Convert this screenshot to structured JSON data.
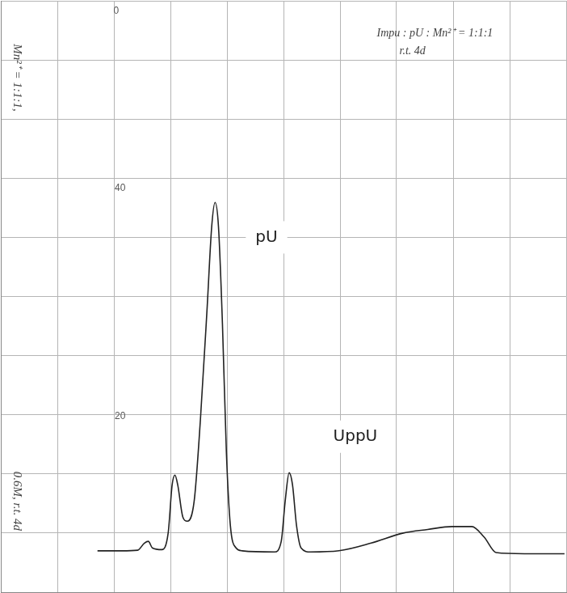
{
  "chart_data": {
    "type": "line",
    "x": [
      17.1,
      21.4,
      24.2,
      25.4,
      26.1,
      26.8,
      28.5,
      29.6,
      30.3,
      30.8,
      31.3,
      32.2,
      33.0,
      34.2,
      35.3,
      36.5,
      37.3,
      37.9,
      38.5,
      39.2,
      39.9,
      40.6,
      41.6,
      42.7,
      48.4,
      49.6,
      50.3,
      51.0,
      51.6,
      52.3,
      53.1,
      54.8,
      59.8,
      65.5,
      71.2,
      75.5,
      79.8,
      83.3,
      85.5,
      87.6,
      92.6,
      99.7
    ],
    "values": [
      7.0,
      7.0,
      7.1,
      8.3,
      8.6,
      7.5,
      7.2,
      10.0,
      18.1,
      19.8,
      18.1,
      12.7,
      12.0,
      15.4,
      29.1,
      48.2,
      61.8,
      65.9,
      61.8,
      45.4,
      23.6,
      11.3,
      7.5,
      7.0,
      6.8,
      8.6,
      15.4,
      20.2,
      18.1,
      11.3,
      7.5,
      6.8,
      7.0,
      8.3,
      10.0,
      10.6,
      11.1,
      11.1,
      9.3,
      6.7,
      6.5,
      6.5
    ],
    "color": "#222222",
    "xlim": [
      0,
      100
    ],
    "xticks": [
      0,
      10,
      20,
      30,
      40,
      50,
      60,
      70,
      80,
      90,
      100
    ],
    "ylim": [
      0,
      100
    ],
    "yticks": [
      0,
      10,
      20,
      30,
      40,
      50,
      60,
      70,
      80,
      90,
      100
    ],
    "grid": true,
    "tick_labels": false,
    "annotations": [
      {
        "text": "pU",
        "x": 47.0,
        "y": 60.0
      },
      {
        "text": "UppU",
        "x": 62.7,
        "y": 26.3
      },
      {
        "text": "Impu : pU : Mn²⁺ = 1:1:1",
        "x": 66.5,
        "y": 94.5
      },
      {
        "text": "r.t. 4d",
        "x": 70.5,
        "y": 91.5
      },
      {
        "text": "0",
        "x": 20.4,
        "y": 98.2
      },
      {
        "text": "40",
        "x": 21.1,
        "y": 68.3
      },
      {
        "text": "20",
        "x": 21.1,
        "y": 29.7
      }
    ],
    "side_notes": [
      {
        "text": "Mn²⁺ = 1:1:1,",
        "x": 2.8,
        "y": 87.0
      },
      {
        "text": "0.6M, r.t. 4d",
        "x": 2.8,
        "y": 15.4
      }
    ]
  }
}
